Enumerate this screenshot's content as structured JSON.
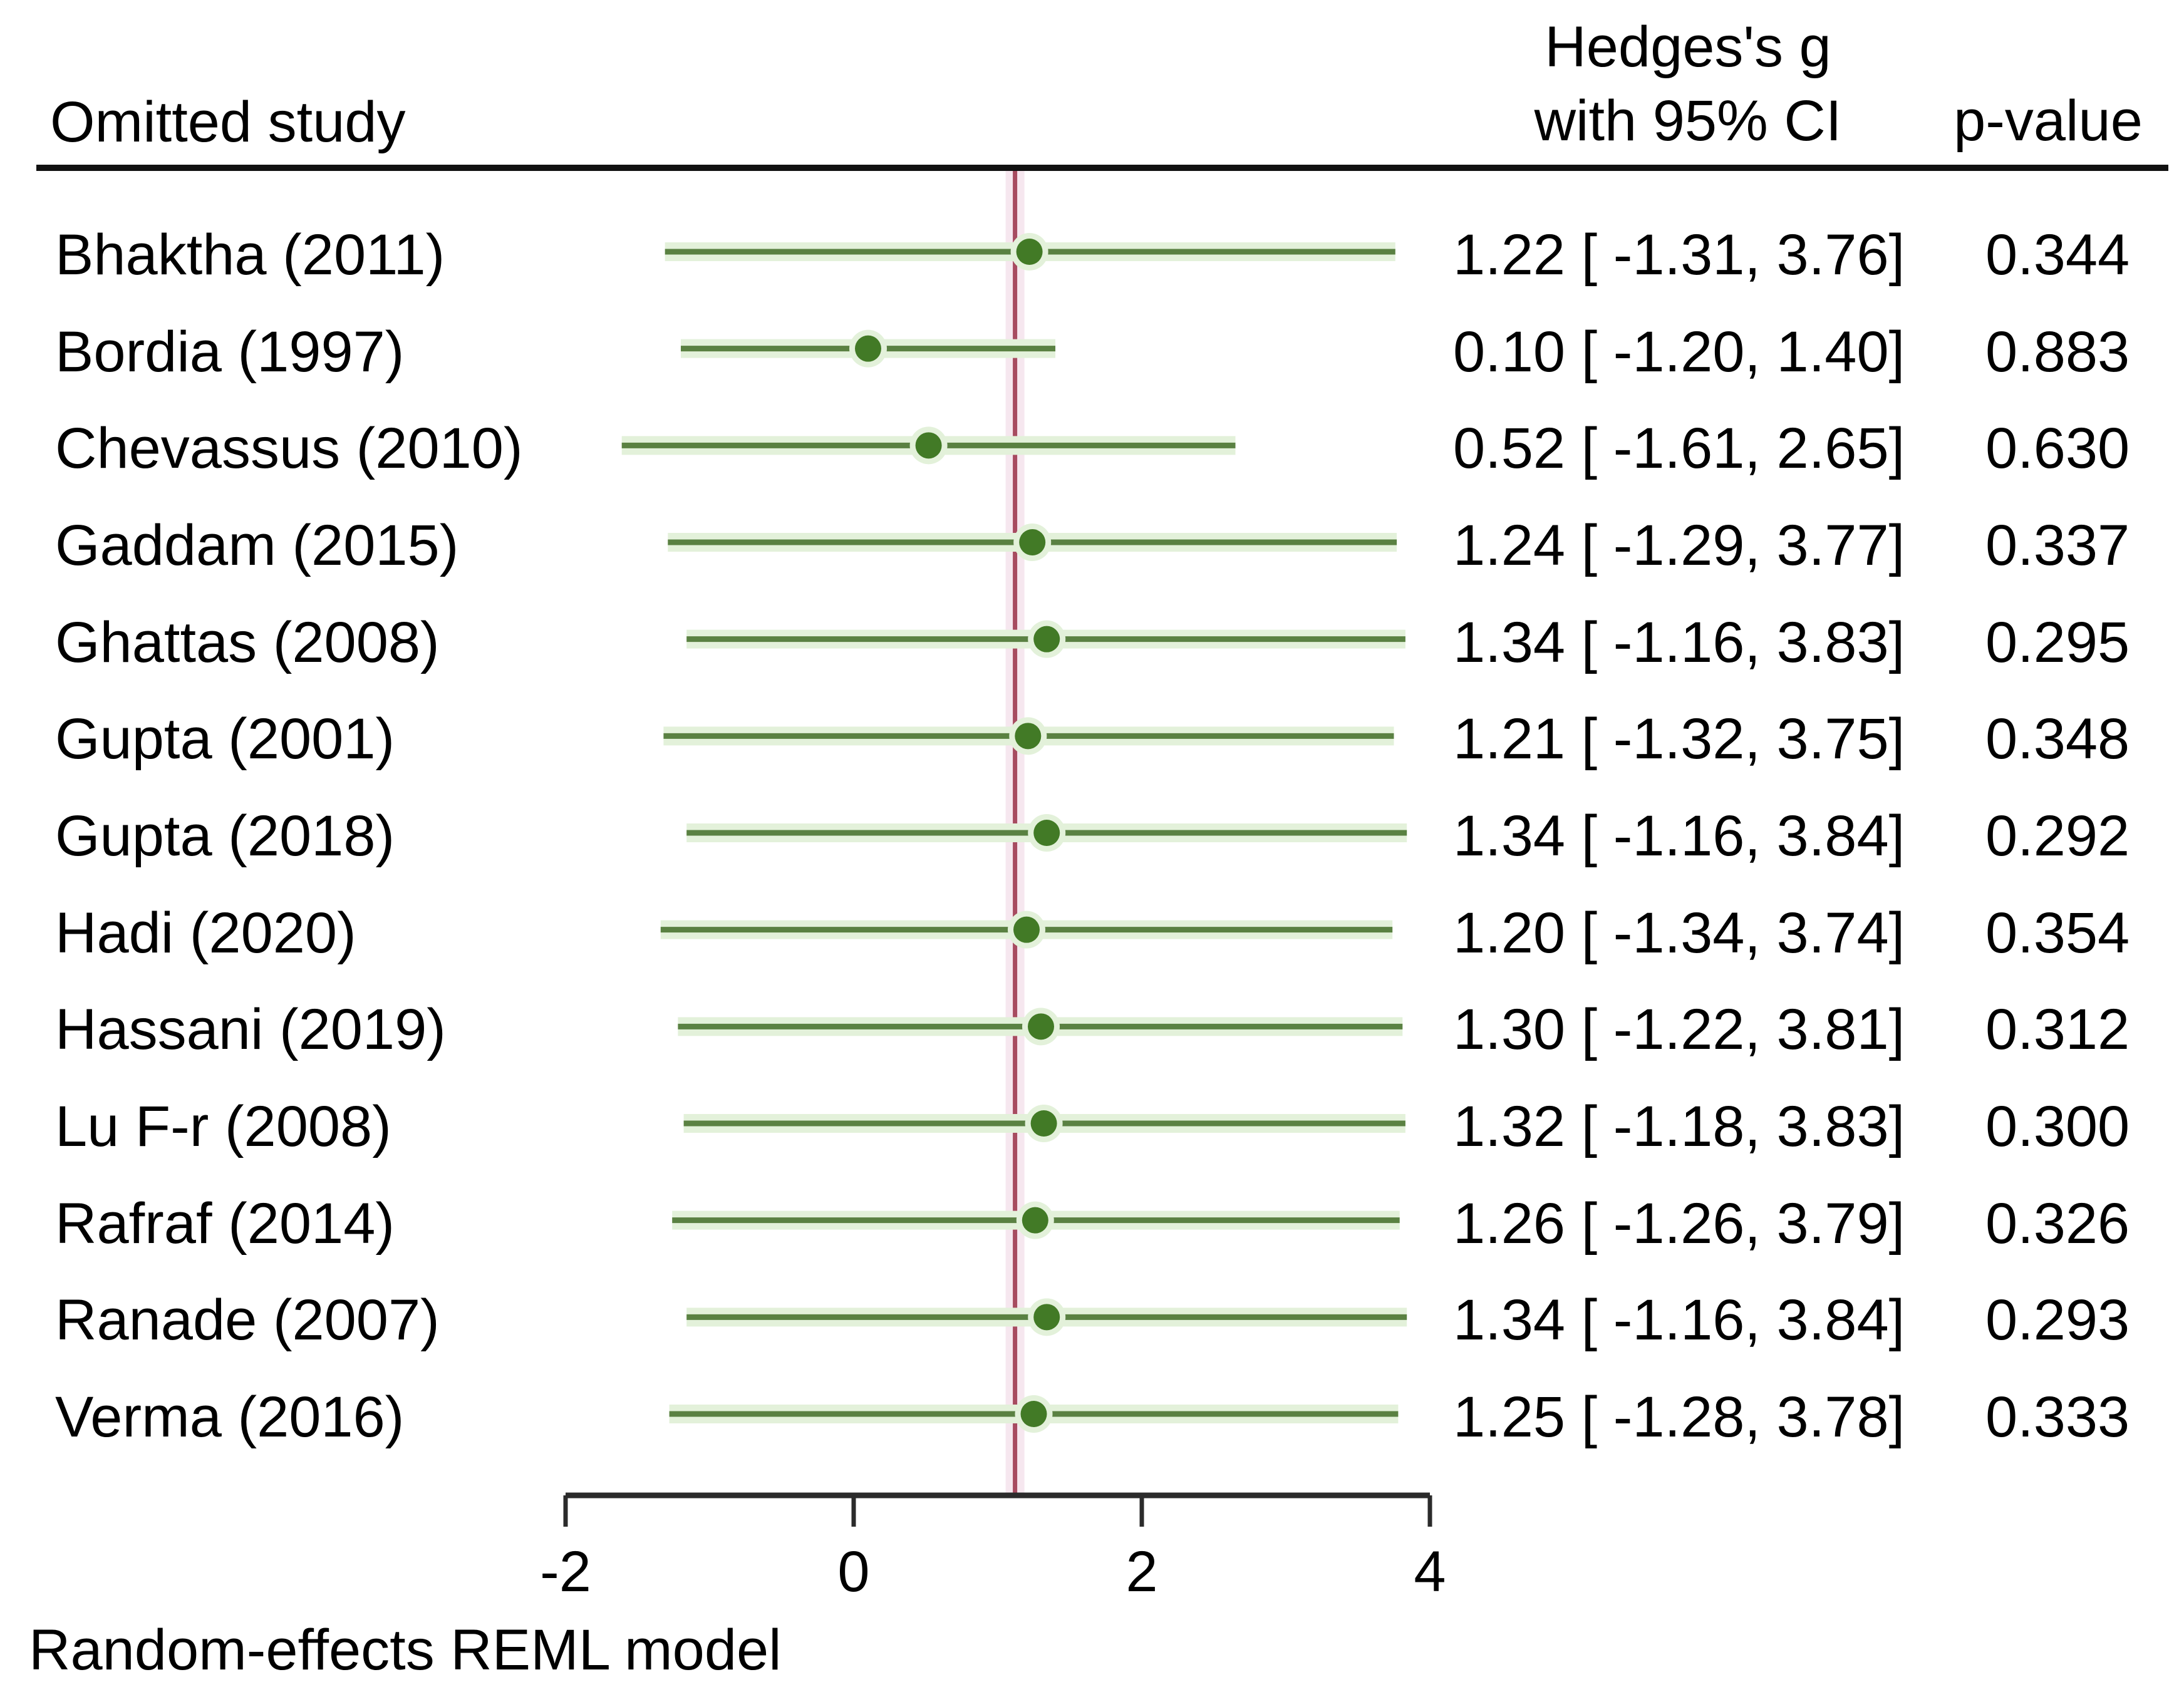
{
  "header": {
    "omitted_study": "Omitted study",
    "effect_line1": "Hedges's g",
    "effect_line2": "with 95% CI",
    "p_value": "p-value"
  },
  "footer": {
    "note": "Random-effects REML model"
  },
  "colors": {
    "background": "#ffffff",
    "text": "#000000",
    "axis": "#2b2b2b",
    "rule": "#111111",
    "ci_line": "#5a8142",
    "ci_halo": "#e3f1da",
    "marker": "#427a26",
    "ref_line": "#a74b60",
    "ref_halo": "#f6e7ef"
  },
  "chart_data": {
    "type": "forest",
    "title": "",
    "xlabel": "",
    "xlim": [
      -2,
      4
    ],
    "ticks": [
      -2,
      0,
      2,
      4
    ],
    "tick_labels": [
      "-2",
      "0",
      "2",
      "4"
    ],
    "ref_line_value": 1.12,
    "grid": false,
    "legend": "none",
    "columns": {
      "study": "Omitted study",
      "effect": "Hedges's g with 95% CI",
      "p": "p-value"
    },
    "studies": [
      {
        "label": "Bhaktha (2011)",
        "g": 1.22,
        "lo": -1.31,
        "hi": 3.76,
        "ci_text": "1.22 [ -1.31,  3.76]",
        "p": "0.344"
      },
      {
        "label": "Bordia (1997)",
        "g": 0.1,
        "lo": -1.2,
        "hi": 1.4,
        "ci_text": "0.10 [ -1.20,  1.40]",
        "p": "0.883"
      },
      {
        "label": "Chevassus (2010)",
        "g": 0.52,
        "lo": -1.61,
        "hi": 2.65,
        "ci_text": "0.52 [ -1.61,  2.65]",
        "p": "0.630"
      },
      {
        "label": "Gaddam (2015)",
        "g": 1.24,
        "lo": -1.29,
        "hi": 3.77,
        "ci_text": "1.24 [ -1.29,  3.77]",
        "p": "0.337"
      },
      {
        "label": "Ghattas (2008)",
        "g": 1.34,
        "lo": -1.16,
        "hi": 3.83,
        "ci_text": "1.34 [ -1.16,  3.83]",
        "p": "0.295"
      },
      {
        "label": "Gupta (2001)",
        "g": 1.21,
        "lo": -1.32,
        "hi": 3.75,
        "ci_text": "1.21 [ -1.32,  3.75]",
        "p": "0.348"
      },
      {
        "label": "Gupta (2018)",
        "g": 1.34,
        "lo": -1.16,
        "hi": 3.84,
        "ci_text": "1.34 [ -1.16,  3.84]",
        "p": "0.292"
      },
      {
        "label": "Hadi (2020)",
        "g": 1.2,
        "lo": -1.34,
        "hi": 3.74,
        "ci_text": "1.20 [ -1.34,  3.74]",
        "p": "0.354"
      },
      {
        "label": "Hassani (2019)",
        "g": 1.3,
        "lo": -1.22,
        "hi": 3.81,
        "ci_text": "1.30 [ -1.22,  3.81]",
        "p": "0.312"
      },
      {
        "label": "Lu F-r (2008)",
        "g": 1.32,
        "lo": -1.18,
        "hi": 3.83,
        "ci_text": "1.32 [ -1.18,  3.83]",
        "p": "0.300"
      },
      {
        "label": "Rafraf (2014)",
        "g": 1.26,
        "lo": -1.26,
        "hi": 3.79,
        "ci_text": "1.26 [ -1.26,  3.79]",
        "p": "0.326"
      },
      {
        "label": "Ranade (2007)",
        "g": 1.34,
        "lo": -1.16,
        "hi": 3.84,
        "ci_text": "1.34 [ -1.16,  3.84]",
        "p": "0.293"
      },
      {
        "label": "Verma (2016)",
        "g": 1.25,
        "lo": -1.28,
        "hi": 3.78,
        "ci_text": "1.25 [ -1.28,  3.78]",
        "p": "0.333"
      }
    ]
  }
}
